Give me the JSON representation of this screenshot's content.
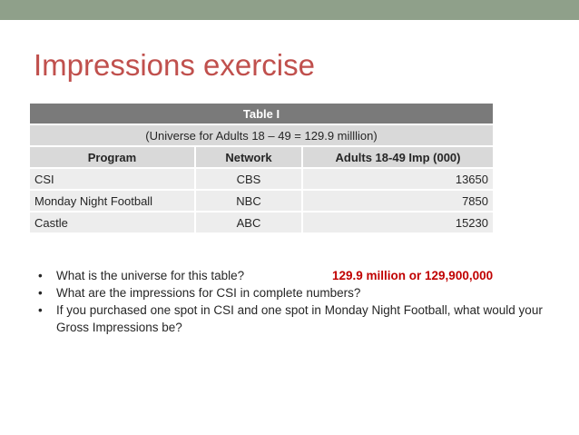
{
  "slide": {
    "title": "Impressions exercise"
  },
  "table": {
    "caption": "Table I",
    "subcaption": "(Universe for Adults 18 – 49 = 129.9 milllion)",
    "headers": [
      "Program",
      "Network",
      "Adults 18-49 Imp (000)"
    ],
    "rows": [
      {
        "program": "CSI",
        "network": "CBS",
        "impressions": "13650"
      },
      {
        "program": "Monday Night Football",
        "network": "NBC",
        "impressions": "7850"
      },
      {
        "program": "Castle",
        "network": "ABC",
        "impressions": "15230"
      }
    ]
  },
  "questions": {
    "bullet": "•",
    "items": [
      {
        "text": "What is the universe for this table?",
        "answer": "129.9 million or 129,900,000"
      },
      {
        "text": "What are the impressions for CSI in complete numbers?"
      },
      {
        "text": "If you purchased one spot in CSI and one spot in Monday Night Football, what would your Gross Impressions be?"
      }
    ]
  },
  "colors": {
    "accent_bar": "#8fa08a",
    "title": "#c0504d",
    "answer": "#c00000",
    "table_caption_bg": "#7a7a7a"
  }
}
